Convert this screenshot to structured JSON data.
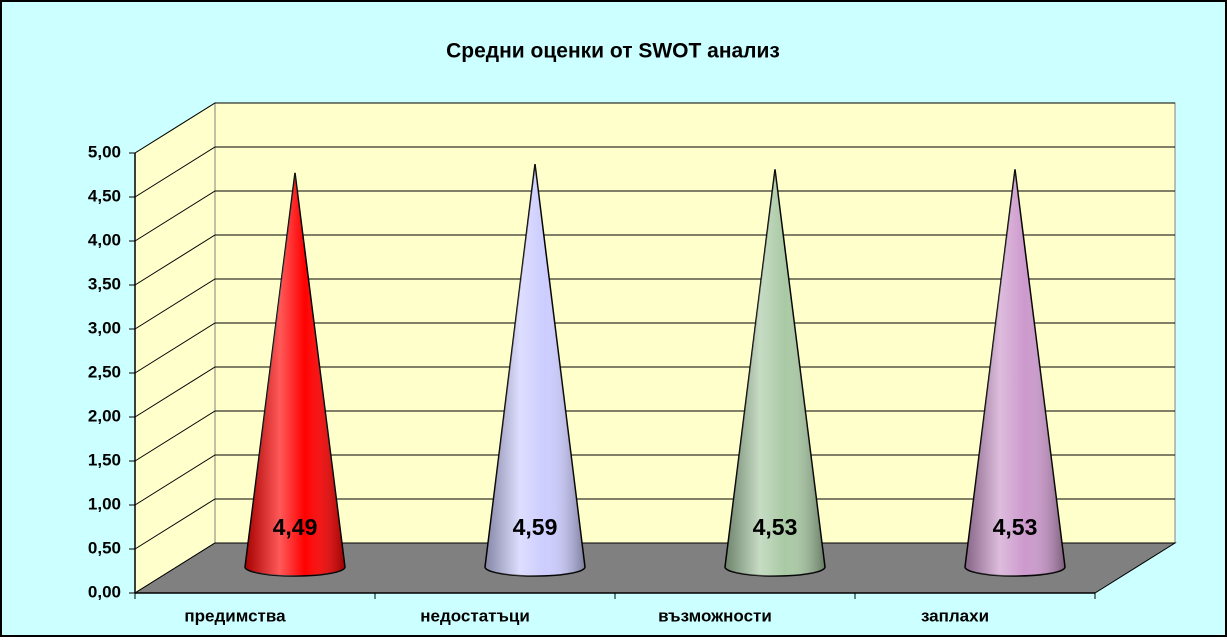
{
  "chart_data": {
    "type": "cone",
    "title": "Средни оценки от SWOT анализ",
    "categories": [
      "предимства",
      "недостатъци",
      "възможности",
      "заплахи"
    ],
    "values": [
      4.49,
      4.59,
      4.53,
      4.53
    ],
    "value_labels": [
      "4,49",
      "4,59",
      "4,53",
      "4,53"
    ],
    "colors": [
      "#ff0000",
      "#ccccff",
      "#a9c9a4",
      "#cc99cc"
    ],
    "ylim": [
      0,
      5
    ],
    "yticks": [
      {
        "value": 0,
        "label": "0,00"
      },
      {
        "value": 0.5,
        "label": "0,50"
      },
      {
        "value": 1,
        "label": "1,00"
      },
      {
        "value": 1.5,
        "label": "1,50"
      },
      {
        "value": 2,
        "label": "2,00"
      },
      {
        "value": 2.5,
        "label": "2,50"
      },
      {
        "value": 3,
        "label": "3,00"
      },
      {
        "value": 3.5,
        "label": "3,50"
      },
      {
        "value": 4,
        "label": "4,00"
      },
      {
        "value": 4.5,
        "label": "4,50"
      },
      {
        "value": 5,
        "label": "5,00"
      }
    ],
    "grid": true
  }
}
